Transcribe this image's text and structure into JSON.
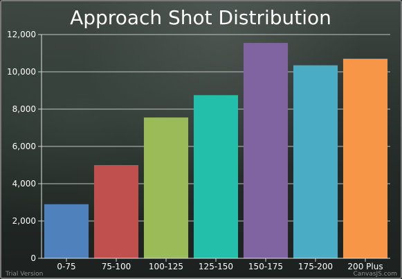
{
  "chart_data": {
    "type": "bar",
    "title": "Approach Shot Distribution",
    "xlabel": "",
    "ylabel": "",
    "categories": [
      "0-75",
      "75-100",
      "100-125",
      "125-150",
      "150-175",
      "175-200",
      "200 Plus"
    ],
    "values": [
      2900,
      5000,
      7550,
      8750,
      11550,
      10350,
      10700
    ],
    "colors": [
      "#4f81bd",
      "#c0504d",
      "#9bbb59",
      "#23bfaa",
      "#8064a2",
      "#4bacc6",
      "#f79646"
    ],
    "ylim": [
      0,
      12000
    ],
    "yticks": [
      "0",
      "2,000",
      "4,000",
      "6,000",
      "8,000",
      "10,000",
      "12,000"
    ],
    "ytick_values": [
      0,
      2000,
      4000,
      6000,
      8000,
      10000,
      12000
    ],
    "grid": true,
    "legend": "none"
  },
  "watermark": {
    "left": "Trial Version",
    "right": "CanvasJS.com"
  }
}
